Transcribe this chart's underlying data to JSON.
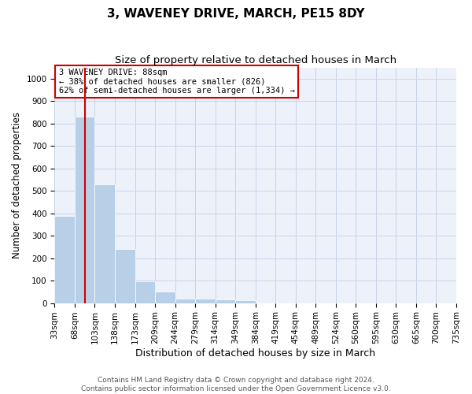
{
  "title": "3, WAVENEY DRIVE, MARCH, PE15 8DY",
  "subtitle": "Size of property relative to detached houses in March",
  "xlabel": "Distribution of detached houses by size in March",
  "ylabel": "Number of detached properties",
  "bar_values": [
    390,
    830,
    530,
    242,
    97,
    53,
    20,
    18,
    16,
    11,
    0,
    0,
    0,
    0,
    0,
    0,
    0,
    0,
    0,
    0
  ],
  "bar_labels": [
    "33sqm",
    "68sqm",
    "103sqm",
    "138sqm",
    "173sqm",
    "209sqm",
    "244sqm",
    "279sqm",
    "314sqm",
    "349sqm",
    "384sqm",
    "419sqm",
    "454sqm",
    "489sqm",
    "524sqm",
    "560sqm",
    "595sqm",
    "630sqm",
    "665sqm",
    "700sqm",
    "735sqm"
  ],
  "bar_color": "#b8cfe8",
  "grid_color": "#c8d4e8",
  "background_color": "#edf1fa",
  "vline_color": "#cc0000",
  "vline_x": 1.5,
  "ylim": [
    0,
    1050
  ],
  "yticks": [
    0,
    100,
    200,
    300,
    400,
    500,
    600,
    700,
    800,
    900,
    1000
  ],
  "annotation_text": "3 WAVENEY DRIVE: 88sqm\n← 38% of detached houses are smaller (826)\n62% of semi-detached houses are larger (1,334) →",
  "annotation_box_color": "#ffffff",
  "annotation_box_edge": "#cc0000",
  "footer_line1": "Contains HM Land Registry data © Crown copyright and database right 2024.",
  "footer_line2": "Contains public sector information licensed under the Open Government Licence v3.0.",
  "title_fontsize": 11,
  "subtitle_fontsize": 9.5,
  "xlabel_fontsize": 9,
  "ylabel_fontsize": 8.5,
  "tick_fontsize": 7.5,
  "footer_fontsize": 6.5,
  "annot_fontsize": 7.5
}
